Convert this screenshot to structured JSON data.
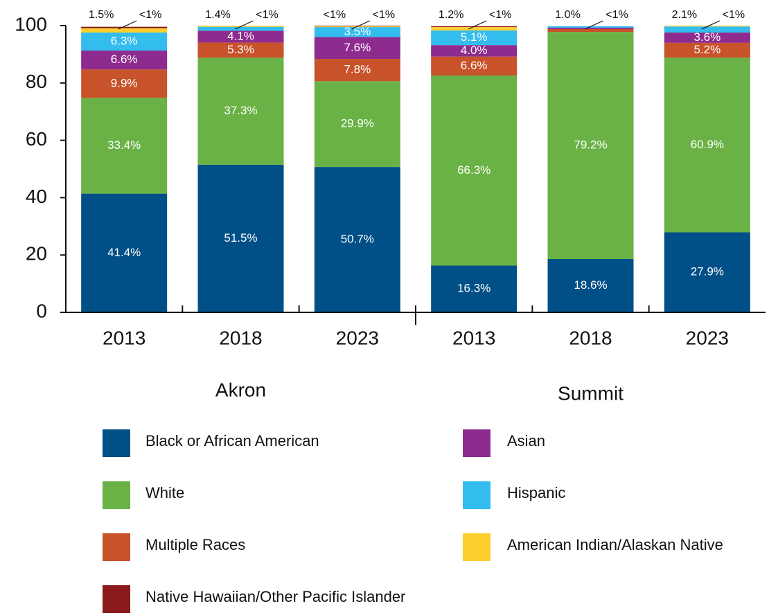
{
  "chart_data": {
    "type": "stacked_bar",
    "categories": [
      "2013",
      "2018",
      "2023",
      "2013",
      "2018",
      "2023"
    ],
    "groups": [
      {
        "name": "Akron",
        "size": 3
      },
      {
        "name": "Summit",
        "size": 3
      }
    ],
    "ylim": [
      0,
      100
    ],
    "yticks": [
      0,
      20,
      40,
      60,
      80,
      100
    ],
    "series": [
      {
        "name": "Black or African American",
        "color": "#004f86",
        "values": [
          41.4,
          51.5,
          50.7,
          16.3,
          18.6,
          27.9
        ],
        "value_labels": [
          "41.4%",
          "51.5%",
          "50.7%",
          "16.3%",
          "18.6%",
          "27.9%"
        ]
      },
      {
        "name": "White",
        "color": "#6ab245",
        "values": [
          33.4,
          37.3,
          29.9,
          66.3,
          79.2,
          60.9
        ],
        "value_labels": [
          "33.4%",
          "37.3%",
          "29.9%",
          "66.3%",
          "79.2%",
          "60.9%"
        ]
      },
      {
        "name": "Multiple Races",
        "color": "#c8522a",
        "values": [
          9.9,
          5.3,
          7.8,
          6.6,
          1.0,
          5.2
        ],
        "value_labels": [
          "9.9%",
          "5.3%",
          "7.8%",
          "6.6%",
          "1.0%",
          "5.2%"
        ]
      },
      {
        "name": "Asian",
        "color": "#8e2b8e",
        "values": [
          6.6,
          4.1,
          7.6,
          4.0,
          0.5,
          3.6
        ],
        "value_labels": [
          "6.6%",
          "4.1%",
          "7.6%",
          "4.0%",
          "<1%",
          "3.6%"
        ]
      },
      {
        "name": "Hispanic",
        "color": "#33bdef",
        "values": [
          6.3,
          1.4,
          3.5,
          5.1,
          0.5,
          2.1
        ],
        "value_labels": [
          "6.3%",
          "1.4%",
          "3.5%",
          "5.1%",
          null,
          "2.1%"
        ]
      },
      {
        "name": "American Indian/Alaskan Native",
        "color": "#fccf2f",
        "values": [
          1.5,
          0.4,
          0.3,
          1.2,
          0,
          0.3
        ],
        "value_labels": [
          "1.5%",
          "<1%",
          "<1%",
          "1.2%",
          null,
          "<1%"
        ]
      },
      {
        "name": "Native Hawaiian/Other Pacific Islander",
        "color": "#8b1a1a",
        "values": [
          0.5,
          0,
          0.2,
          0.3,
          0,
          0
        ],
        "value_labels": [
          "<1%",
          null,
          "<1%",
          "<1%",
          null,
          null
        ]
      }
    ]
  }
}
